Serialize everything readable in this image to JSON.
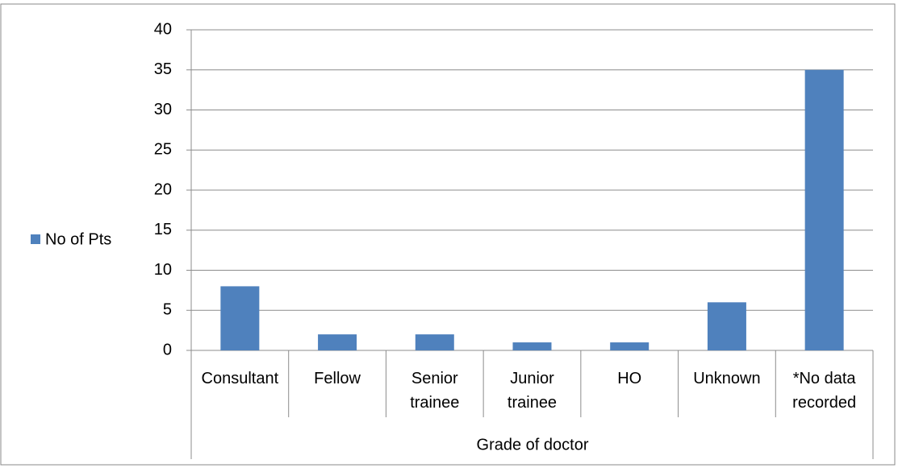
{
  "chart_data": {
    "type": "bar",
    "categories": [
      "Consultant",
      "Fellow",
      "Senior trainee",
      "Junior trainee",
      "HO",
      "Unknown",
      "*No data recorded"
    ],
    "series": [
      {
        "name": "No of Pts",
        "color": "#4f81bd",
        "values": [
          8,
          2,
          2,
          1,
          1,
          6,
          35
        ]
      }
    ],
    "x_label": "Grade of doctor",
    "ylim": [
      0,
      40
    ],
    "yticks": [
      0,
      5,
      10,
      15,
      20,
      25,
      30,
      35,
      40
    ],
    "grid": true,
    "legend": "left"
  }
}
